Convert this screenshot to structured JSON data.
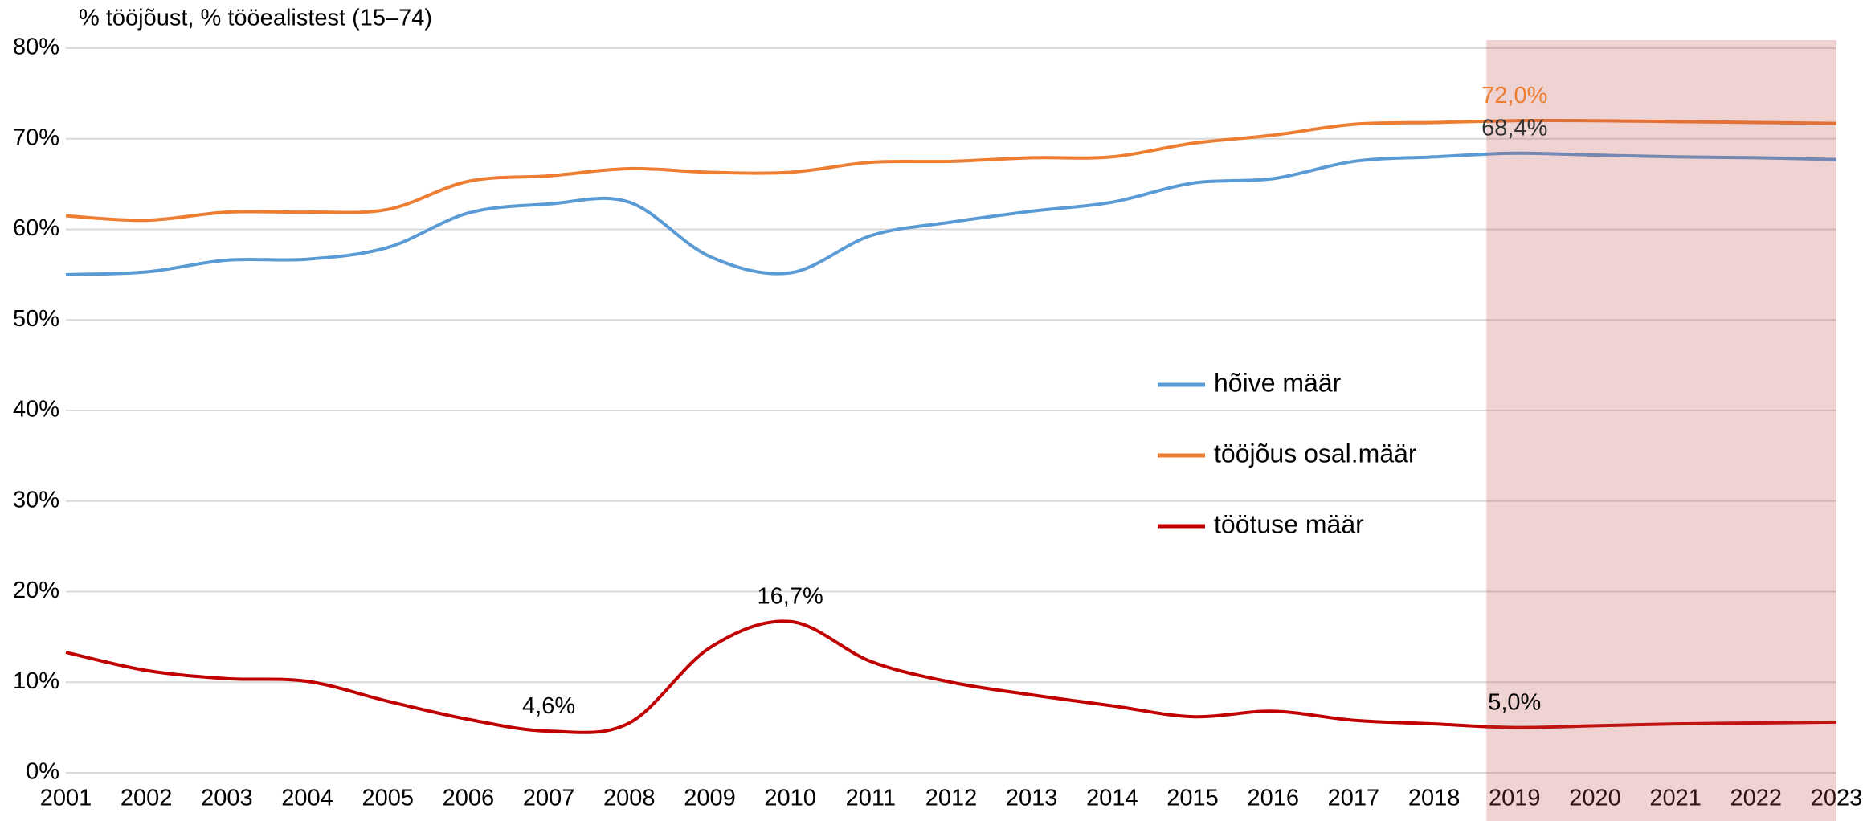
{
  "chart_data": {
    "type": "line",
    "y_axis_title": "% tööjõust, % tööealistest (15–74)",
    "x": [
      2001,
      2002,
      2003,
      2004,
      2005,
      2006,
      2007,
      2008,
      2009,
      2010,
      2011,
      2012,
      2013,
      2014,
      2015,
      2016,
      2017,
      2018,
      2019,
      2020,
      2021,
      2022,
      2023
    ],
    "xlim": [
      2001,
      2023
    ],
    "xticks": [
      2001,
      2002,
      2003,
      2004,
      2005,
      2006,
      2007,
      2008,
      2009,
      2010,
      2011,
      2012,
      2013,
      2014,
      2015,
      2016,
      2017,
      2018,
      2019,
      2020,
      2021,
      2022,
      2023
    ],
    "ylim": [
      0,
      80
    ],
    "yticks": [
      {
        "value": 0,
        "label": "0%"
      },
      {
        "value": 10,
        "label": "10%"
      },
      {
        "value": 20,
        "label": "20%"
      },
      {
        "value": 30,
        "label": "30%"
      },
      {
        "value": 40,
        "label": "40%"
      },
      {
        "value": 50,
        "label": "50%"
      },
      {
        "value": 60,
        "label": "60%"
      },
      {
        "value": 70,
        "label": "70%"
      },
      {
        "value": 80,
        "label": "80%"
      }
    ],
    "grid": true,
    "legend": "center",
    "shaded_range": {
      "xlim": [
        2018.65,
        2023
      ],
      "color": "#c0504d",
      "opacity": 0.25
    },
    "series": [
      {
        "name": "hõive määr",
        "color": "#5b9bd5",
        "value_label_color": "#333333",
        "values": [
          55.0,
          55.3,
          56.6,
          56.7,
          58.0,
          61.8,
          62.8,
          63.0,
          57.0,
          55.2,
          59.3,
          60.8,
          62.0,
          63.0,
          65.1,
          65.6,
          67.5,
          68.0,
          68.4,
          68.2,
          68.0,
          67.9,
          67.7
        ],
        "value_labels": [
          null,
          null,
          null,
          null,
          null,
          null,
          null,
          null,
          null,
          null,
          null,
          null,
          null,
          null,
          null,
          null,
          null,
          null,
          "68,4%",
          null,
          null,
          null,
          null
        ]
      },
      {
        "name": "tööjõus osal.määr",
        "color": "#ed7d31",
        "value_label_color": "#ed7d31",
        "values": [
          61.5,
          61.0,
          61.9,
          61.9,
          62.2,
          65.3,
          65.9,
          66.7,
          66.3,
          66.3,
          67.4,
          67.5,
          67.9,
          68.0,
          69.5,
          70.4,
          71.6,
          71.8,
          72.0,
          72.0,
          71.9,
          71.8,
          71.7
        ],
        "value_labels": [
          null,
          null,
          null,
          null,
          null,
          null,
          null,
          null,
          null,
          null,
          null,
          null,
          null,
          null,
          null,
          null,
          null,
          null,
          "72,0%",
          null,
          null,
          null,
          null
        ]
      },
      {
        "name": "töötuse määr",
        "color": "#c00000",
        "value_label_color": "#000000",
        "values": [
          13.3,
          11.3,
          10.4,
          10.1,
          7.9,
          5.9,
          4.6,
          5.5,
          13.8,
          16.7,
          12.3,
          10.0,
          8.6,
          7.4,
          6.2,
          6.8,
          5.8,
          5.4,
          5.0,
          5.2,
          5.4,
          5.5,
          5.6
        ],
        "value_labels": [
          null,
          null,
          null,
          null,
          null,
          null,
          "4,6%",
          null,
          null,
          "16,7%",
          null,
          null,
          null,
          null,
          null,
          null,
          null,
          null,
          "5,0%",
          null,
          null,
          null,
          null
        ]
      }
    ]
  }
}
